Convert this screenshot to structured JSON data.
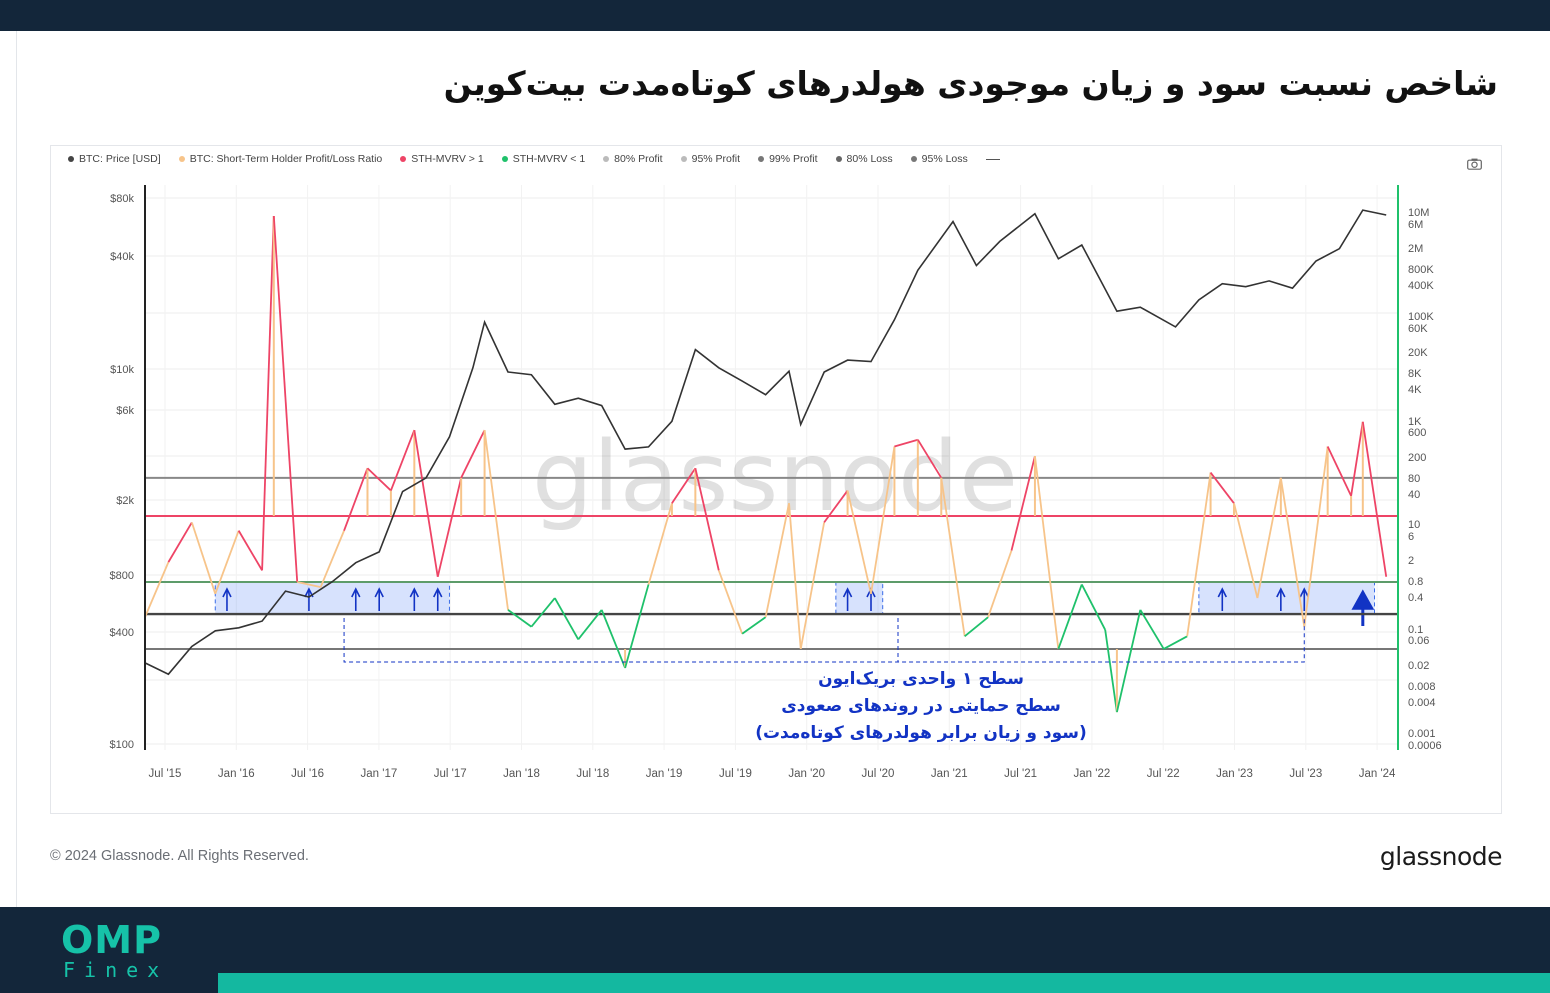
{
  "page": {
    "title": "شاخص نسبت سود و زیان موجودی هولدرهای کوتاه‌مدت بیت‌کوین",
    "copyright": "© 2024 Glassnode. All Rights Reserved.",
    "brand_logo": "glassnode",
    "watermark": "glassnode",
    "footer_brand": {
      "name": "OMP",
      "sub": "Finex",
      "color": "#16c2a8",
      "bar_color": "#13263a"
    }
  },
  "legend": [
    {
      "label": "BTC: Price [USD]",
      "color": "#444444"
    },
    {
      "label": "BTC: Short-Term Holder Profit/Loss Ratio",
      "color": "#f7c48a"
    },
    {
      "label": "STH-MVRV > 1",
      "color": "#ee4466"
    },
    {
      "label": "STH-MVRV < 1",
      "color": "#1fc16b"
    },
    {
      "label": "80% Profit",
      "color": "#bbbbbb"
    },
    {
      "label": "95% Profit",
      "color": "#bbbbbb"
    },
    {
      "label": "99% Profit",
      "color": "#777777"
    },
    {
      "label": "80% Loss",
      "color": "#666666"
    },
    {
      "label": "95% Loss",
      "color": "#777777"
    }
  ],
  "toolbar": {
    "camera_icon": "camera-icon"
  },
  "annotation": {
    "lines": [
      "سطح ۱ واحدی بریک‌ایون",
      "سطح حمایتی در روندهای صعودی",
      "(سود و زیان برابر هولدرهای کوتاه‌مدت)"
    ],
    "color": "#1233c4"
  },
  "chart_data": {
    "type": "line",
    "left_axis": {
      "scale": "log",
      "ticks": [
        "$80k",
        "$40k",
        "$10k",
        "$6k",
        "$2k",
        "$800",
        "$400",
        "$100"
      ]
    },
    "right_axis": {
      "scale": "log",
      "ticks": [
        "10M",
        "6M",
        "2M",
        "800K",
        "400K",
        "100K",
        "60K",
        "20K",
        "8K",
        "4K",
        "1K",
        "600",
        "200",
        "80",
        "40",
        "10",
        "6",
        "2",
        "0.8",
        "0.4",
        "0.1",
        "0.06",
        "0.02",
        "0.008",
        "0.004",
        "0.001",
        "0.0006"
      ]
    },
    "x_ticks": [
      "Jul '15",
      "Jan '16",
      "Jul '16",
      "Jan '17",
      "Jul '17",
      "Jan '18",
      "Jul '18",
      "Jan '19",
      "Jul '19",
      "Jan '20",
      "Jul '20",
      "Jan '21",
      "Jul '21",
      "Jan '22",
      "Jul '22",
      "Jan '23",
      "Jul '23",
      "Jan '24"
    ],
    "reference_levels": [
      {
        "value": 80,
        "label": "99% Profit"
      },
      {
        "value": 10,
        "label": "95% Profit"
      },
      {
        "value": 1,
        "label": "break-even"
      },
      {
        "value": 0.25,
        "label": "80% Loss"
      },
      {
        "value": 0.02,
        "label": "95% Loss"
      }
    ],
    "price_series": {
      "name": "BTC: Price [USD]",
      "points": [
        [
          "2015-07",
          270
        ],
        [
          "2015-09",
          235
        ],
        [
          "2015-11",
          330
        ],
        [
          "2016-01",
          400
        ],
        [
          "2016-03",
          415
        ],
        [
          "2016-05",
          450
        ],
        [
          "2016-07",
          650
        ],
        [
          "2016-09",
          605
        ],
        [
          "2016-11",
          730
        ],
        [
          "2017-01",
          920
        ],
        [
          "2017-03",
          1050
        ],
        [
          "2017-05",
          2200
        ],
        [
          "2017-07",
          2600
        ],
        [
          "2017-09",
          4300
        ],
        [
          "2017-11",
          10000
        ],
        [
          "2017-12",
          17500
        ],
        [
          "2018-02",
          9500
        ],
        [
          "2018-04",
          9200
        ],
        [
          "2018-06",
          6400
        ],
        [
          "2018-08",
          6900
        ],
        [
          "2018-10",
          6300
        ],
        [
          "2018-12",
          3700
        ],
        [
          "2019-02",
          3800
        ],
        [
          "2019-04",
          5200
        ],
        [
          "2019-06",
          12500
        ],
        [
          "2019-08",
          10000
        ],
        [
          "2019-10",
          8500
        ],
        [
          "2019-12",
          7200
        ],
        [
          "2020-02",
          9600
        ],
        [
          "2020-03",
          5000
        ],
        [
          "2020-05",
          9500
        ],
        [
          "2020-07",
          11000
        ],
        [
          "2020-09",
          10800
        ],
        [
          "2020-11",
          18000
        ],
        [
          "2021-01",
          33000
        ],
        [
          "2021-04",
          60000
        ],
        [
          "2021-06",
          35000
        ],
        [
          "2021-08",
          47000
        ],
        [
          "2021-11",
          66000
        ],
        [
          "2022-01",
          38000
        ],
        [
          "2022-03",
          45000
        ],
        [
          "2022-06",
          20000
        ],
        [
          "2022-08",
          21000
        ],
        [
          "2022-11",
          16500
        ],
        [
          "2023-01",
          23000
        ],
        [
          "2023-03",
          28000
        ],
        [
          "2023-05",
          27000
        ],
        [
          "2023-07",
          29000
        ],
        [
          "2023-09",
          26500
        ],
        [
          "2023-11",
          37000
        ],
        [
          "2024-01",
          43000
        ],
        [
          "2024-03",
          69000
        ],
        [
          "2024-05",
          65000
        ]
      ]
    },
    "ratio_series": {
      "name": "BTC: Short-Term Holder Profit/Loss Ratio",
      "points": [
        [
          "2015-07",
          0.2
        ],
        [
          "2015-09",
          2
        ],
        [
          "2015-11",
          8
        ],
        [
          "2016-01",
          0.6
        ],
        [
          "2016-03",
          6
        ],
        [
          "2016-05",
          1.5
        ],
        [
          "2016-06",
          1000000
        ],
        [
          "2016-08",
          1
        ],
        [
          "2016-10",
          0.8
        ],
        [
          "2016-12",
          6
        ],
        [
          "2017-02",
          120
        ],
        [
          "2017-04",
          40
        ],
        [
          "2017-06",
          600
        ],
        [
          "2017-08",
          1.2
        ],
        [
          "2017-10",
          80
        ],
        [
          "2017-12",
          600
        ],
        [
          "2018-02",
          0.3
        ],
        [
          "2018-04",
          0.1
        ],
        [
          "2018-06",
          0.5
        ],
        [
          "2018-08",
          0.04
        ],
        [
          "2018-10",
          0.3
        ],
        [
          "2018-12",
          0.01
        ],
        [
          "2019-02",
          0.9
        ],
        [
          "2019-04",
          20
        ],
        [
          "2019-06",
          120
        ],
        [
          "2019-08",
          1.5
        ],
        [
          "2019-10",
          0.06
        ],
        [
          "2019-12",
          0.2
        ],
        [
          "2020-02",
          20
        ],
        [
          "2020-03",
          0.02
        ],
        [
          "2020-05",
          8
        ],
        [
          "2020-07",
          40
        ],
        [
          "2020-09",
          0.6
        ],
        [
          "2020-11",
          300
        ],
        [
          "2021-01",
          400
        ],
        [
          "2021-03",
          80
        ],
        [
          "2021-05",
          0.05
        ],
        [
          "2021-07",
          0.2
        ],
        [
          "2021-09",
          3
        ],
        [
          "2021-11",
          200
        ],
        [
          "2022-01",
          0.02
        ],
        [
          "2022-03",
          0.9
        ],
        [
          "2022-05",
          0.08
        ],
        [
          "2022-06",
          0.002
        ],
        [
          "2022-08",
          0.3
        ],
        [
          "2022-10",
          0.02
        ],
        [
          "2022-12",
          0.05
        ],
        [
          "2023-02",
          100
        ],
        [
          "2023-04",
          20
        ],
        [
          "2023-06",
          0.5
        ],
        [
          "2023-08",
          80
        ],
        [
          "2023-10",
          0.1
        ],
        [
          "2023-12",
          300
        ],
        [
          "2024-02",
          30
        ],
        [
          "2024-03",
          800
        ],
        [
          "2024-05",
          1.2
        ]
      ]
    },
    "support_zones": [
      {
        "from": "2016-01",
        "to": "2017-09",
        "arrows": [
          "2016-02",
          "2016-09",
          "2017-01",
          "2017-03",
          "2017-06",
          "2017-08"
        ]
      },
      {
        "from": "2020-06",
        "to": "2020-10",
        "arrows": [
          "2020-07",
          "2020-09"
        ]
      },
      {
        "from": "2023-01",
        "to": "2024-04",
        "arrows": [
          "2023-03",
          "2023-08",
          "2023-10",
          "2024-03"
        ]
      }
    ],
    "bracket": {
      "from": "2016-12",
      "to": "2023-10"
    }
  }
}
